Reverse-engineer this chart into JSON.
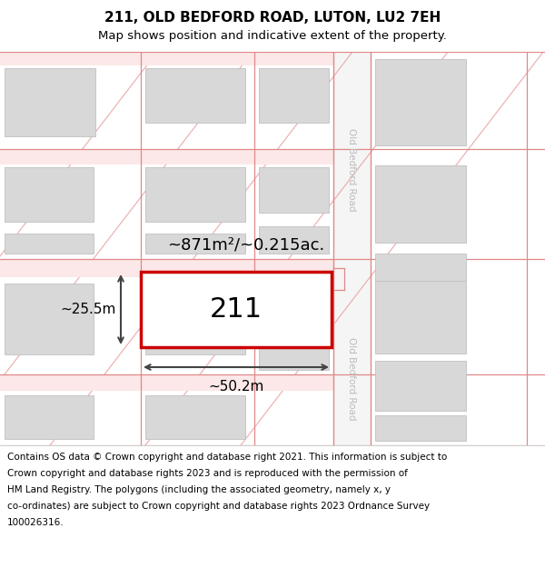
{
  "title": "211, OLD BEDFORD ROAD, LUTON, LU2 7EH",
  "subtitle": "Map shows position and indicative extent of the property.",
  "footer_line1": "Contains OS data © Crown copyright and database right 2021. This information is subject to",
  "footer_line2": "Crown copyright and database rights 2023 and is reproduced with the permission of",
  "footer_line3": "HM Land Registry. The polygons (including the associated geometry, namely x, y",
  "footer_line4": "co-ordinates) are subject to Crown copyright and database rights 2023 Ordnance Survey",
  "footer_line5": "100026316.",
  "bg_color": "#ffffff",
  "road_fill": "#fce8e8",
  "road_line": "#e08888",
  "building_fill": "#d8d8d8",
  "building_edge": "#c0c0c0",
  "highlight_red": "#cc0000",
  "dim_color": "#444444",
  "road_label_color": "#bbbbbb",
  "road_label": "Old Bedford Road",
  "property_label": "211",
  "area_label": "~871m²/~0.215ac.",
  "width_label": "~50.2m",
  "height_label": "~25.5m"
}
